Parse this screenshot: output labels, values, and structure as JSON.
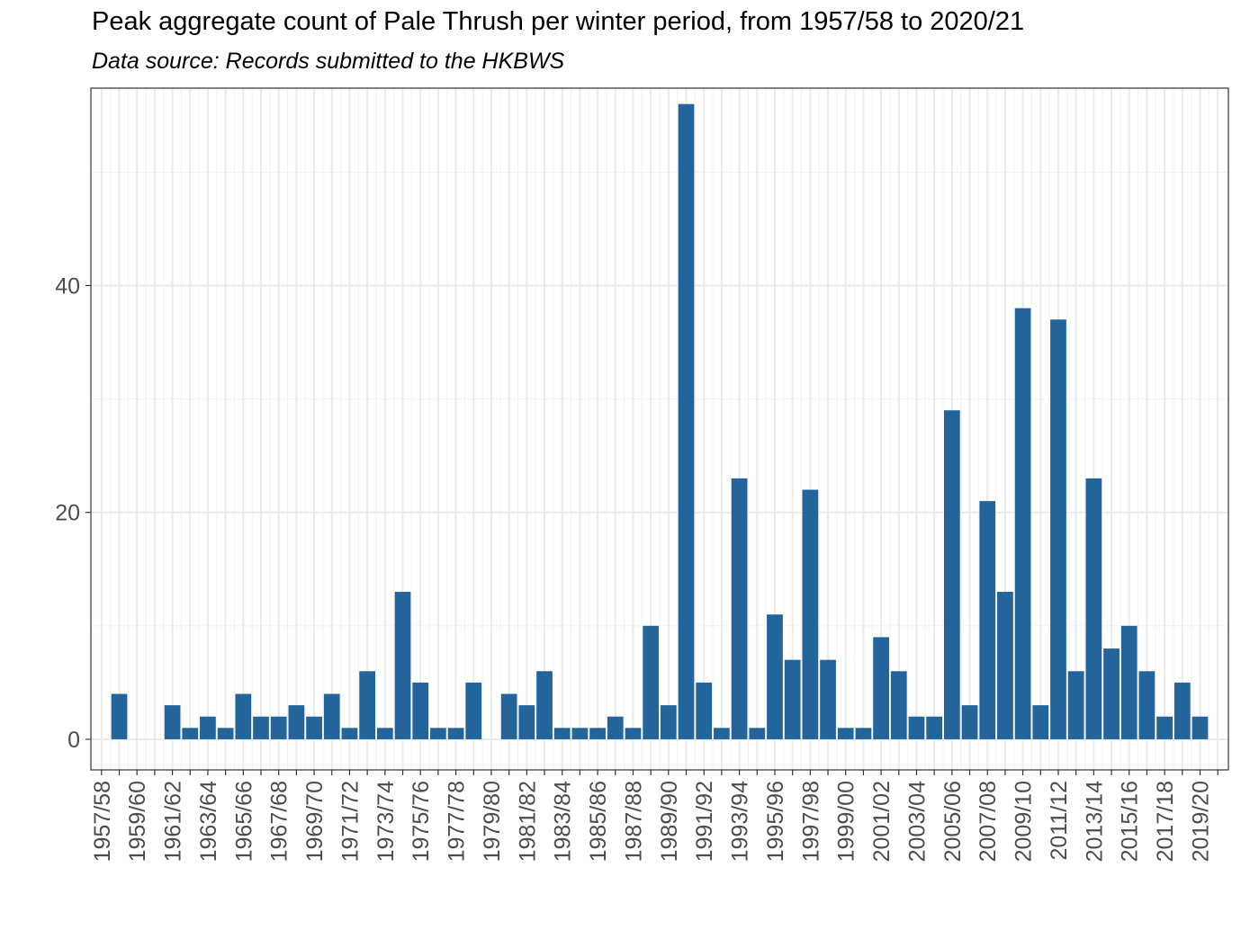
{
  "chart_data": {
    "type": "bar",
    "title": "Peak aggregate count of Pale Thrush per winter period, from 1957/58 to 2020/21",
    "subtitle": "Data source: Records submitted to the HKBWS",
    "xlabel": "",
    "ylabel": "",
    "ylim": [
      -2.7,
      57.4
    ],
    "yticks": [
      0,
      20,
      40
    ],
    "grid": true,
    "bar_color": "#23649b",
    "categories": [
      "1957/58",
      "1958/59",
      "1959/60",
      "1960/61",
      "1961/62",
      "1962/63",
      "1963/64",
      "1964/65",
      "1965/66",
      "1966/67",
      "1967/68",
      "1968/69",
      "1969/70",
      "1970/71",
      "1971/72",
      "1972/73",
      "1973/74",
      "1974/75",
      "1975/76",
      "1976/77",
      "1977/78",
      "1978/79",
      "1979/80",
      "1980/81",
      "1981/82",
      "1982/83",
      "1983/84",
      "1984/85",
      "1985/86",
      "1986/87",
      "1987/88",
      "1988/89",
      "1989/90",
      "1990/91",
      "1991/92",
      "1992/93",
      "1993/94",
      "1994/95",
      "1995/96",
      "1996/97",
      "1997/98",
      "1998/99",
      "1999/00",
      "2000/01",
      "2001/02",
      "2002/03",
      "2003/04",
      "2004/05",
      "2005/06",
      "2006/07",
      "2007/08",
      "2008/09",
      "2009/10",
      "2010/11",
      "2011/12",
      "2012/13",
      "2013/14",
      "2014/15",
      "2015/16",
      "2016/17",
      "2017/18",
      "2018/19",
      "2019/20",
      "2020/21"
    ],
    "values": [
      0,
      4,
      0,
      0,
      3,
      1,
      2,
      1,
      4,
      2,
      2,
      3,
      2,
      4,
      1,
      6,
      1,
      13,
      5,
      1,
      1,
      5,
      0,
      4,
      3,
      6,
      1,
      1,
      1,
      2,
      1,
      10,
      3,
      56,
      5,
      1,
      23,
      1,
      11,
      7,
      22,
      7,
      1,
      1,
      9,
      6,
      2,
      2,
      29,
      3,
      21,
      13,
      38,
      3,
      37,
      6,
      23,
      8,
      10,
      6,
      2,
      5,
      2,
      0
    ],
    "tick_labels": [
      "1957/58",
      "1959/60",
      "1961/62",
      "1963/64",
      "1965/66",
      "1967/68",
      "1969/70",
      "1971/72",
      "1973/74",
      "1975/76",
      "1977/78",
      "1979/80",
      "1981/82",
      "1983/84",
      "1985/86",
      "1987/88",
      "1989/90",
      "1991/92",
      "1993/94",
      "1995/96",
      "1997/98",
      "1999/00",
      "2001/02",
      "2003/04",
      "2005/06",
      "2007/08",
      "2009/10",
      "2011/12",
      "2013/14",
      "2015/16",
      "2017/18",
      "2019/20"
    ]
  }
}
